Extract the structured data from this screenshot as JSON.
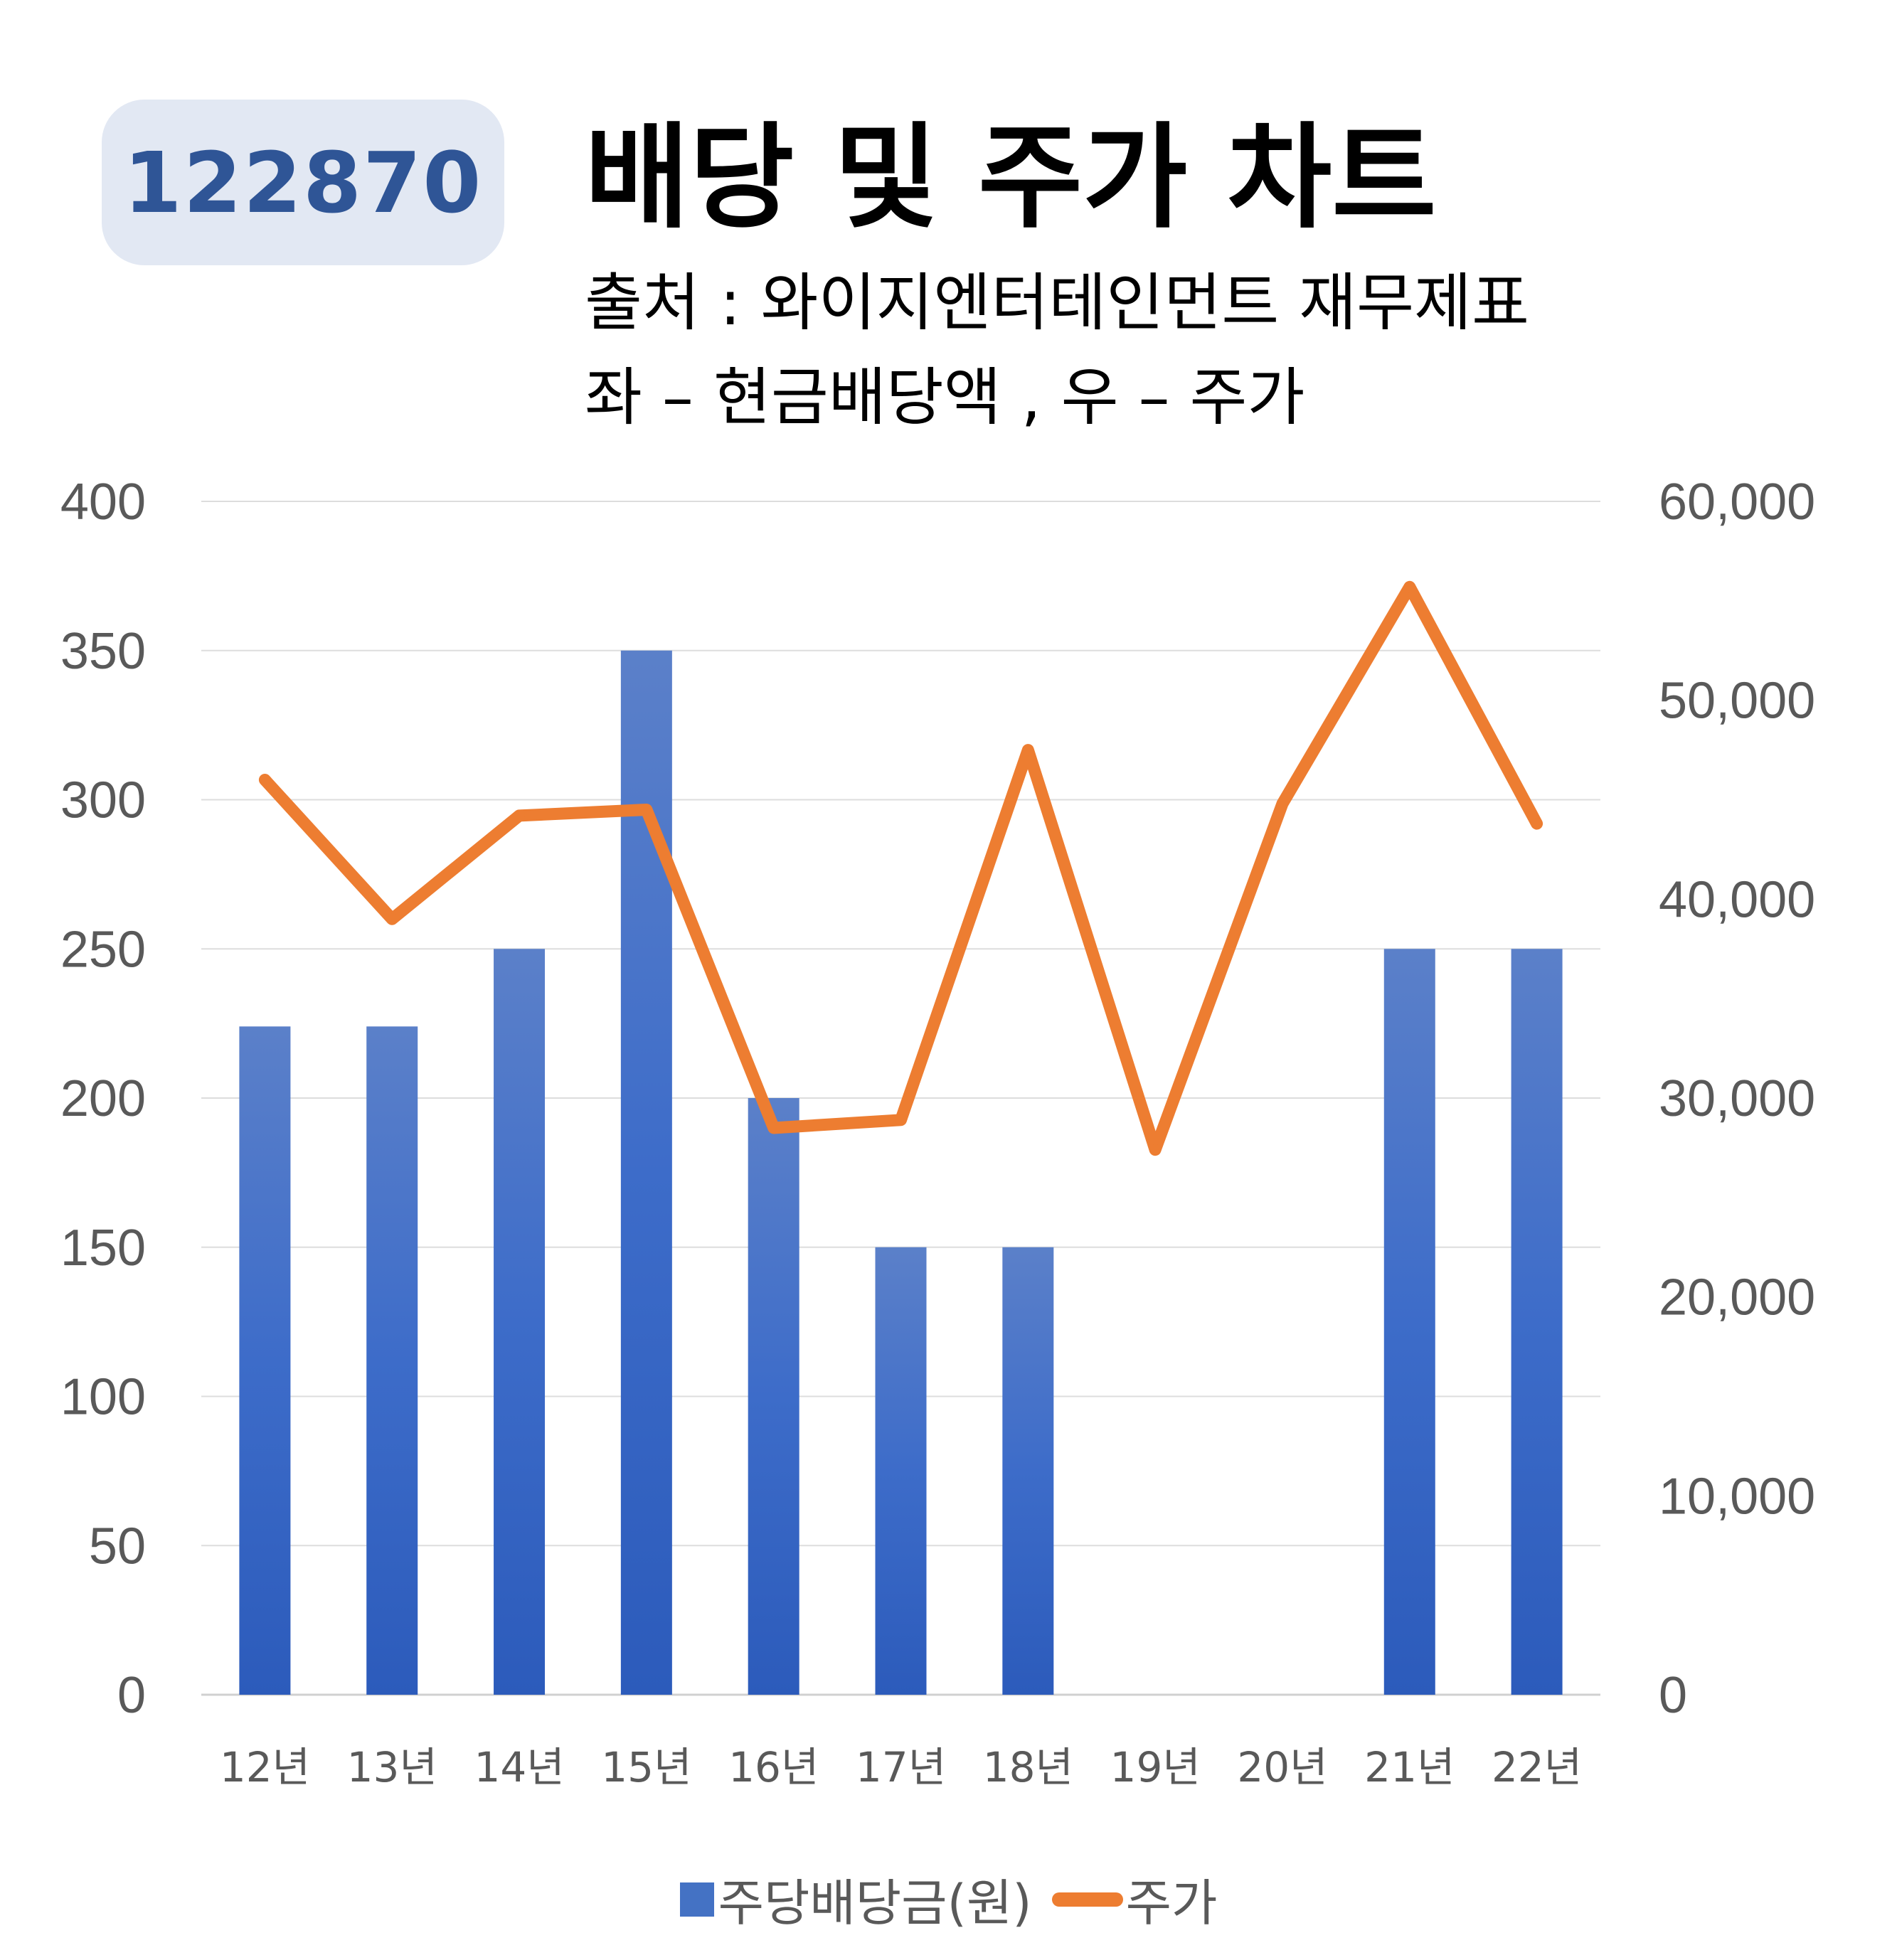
{
  "header": {
    "code": "122870",
    "title": "배당 및 주가 차트",
    "subtitle_line1": "출처 : 와이지엔터테인먼트 재무제표",
    "subtitle_line2": "좌 – 현금배당액 , 우 – 주가"
  },
  "colors": {
    "bar": "#4472c4",
    "line": "#ed7d31",
    "badge_bg": "#e2e8f3",
    "badge_text": "#2f5596"
  },
  "chart_data": {
    "type": "bar",
    "categories": [
      "12년",
      "13년",
      "14년",
      "15년",
      "16년",
      "17년",
      "18년",
      "19년",
      "20년",
      "21년",
      "22년"
    ],
    "series": [
      {
        "name": "주당배당금(원)",
        "type": "bar",
        "axis": "left",
        "values": [
          224,
          224,
          250,
          350,
          200,
          150,
          150,
          0,
          0,
          250,
          250
        ]
      },
      {
        "name": "주가",
        "type": "line",
        "axis": "right",
        "values": [
          46000,
          39000,
          44200,
          44500,
          28500,
          28900,
          47500,
          27400,
          44800,
          55700,
          43800
        ]
      }
    ],
    "y_left": {
      "range": [
        0,
        400
      ],
      "ticks": [
        "0",
        "50",
        "100",
        "150",
        "200",
        "250",
        "300",
        "350",
        "400"
      ]
    },
    "y_right": {
      "range": [
        0,
        60000
      ],
      "ticks": [
        "0",
        "10,000",
        "20,000",
        "30,000",
        "40,000",
        "50,000",
        "60,000"
      ]
    },
    "grid": true,
    "legend_position": "bottom"
  }
}
